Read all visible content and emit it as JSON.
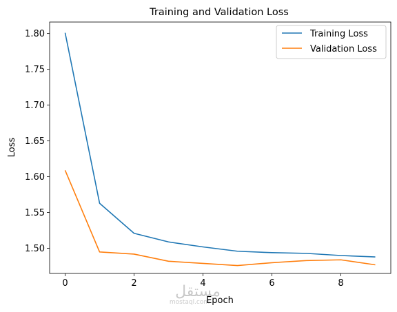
{
  "chart_data": {
    "type": "line",
    "title": "Training and Validation Loss",
    "xlabel": "Epoch",
    "ylabel": "Loss",
    "x": [
      0,
      1,
      2,
      3,
      4,
      5,
      6,
      7,
      8,
      9
    ],
    "xticks": [
      0,
      2,
      4,
      6,
      8
    ],
    "yticks": [
      1.5,
      1.55,
      1.6,
      1.65,
      1.7,
      1.75,
      1.8
    ],
    "xlim": [
      -0.45,
      9.45
    ],
    "ylim": [
      1.465,
      1.816
    ],
    "grid": false,
    "legend_position": "upper right",
    "series": [
      {
        "name": "Training Loss",
        "color": "#1f77b4",
        "values": [
          1.801,
          1.563,
          1.521,
          1.509,
          1.502,
          1.496,
          1.494,
          1.493,
          1.49,
          1.488
        ]
      },
      {
        "name": "Validation Loss",
        "color": "#ff7f0e",
        "values": [
          1.609,
          1.495,
          1.492,
          1.482,
          1.479,
          1.476,
          1.48,
          1.483,
          1.484,
          1.477
        ]
      }
    ]
  },
  "watermark": {
    "text": "مستقل",
    "subtext": "mostaql.com"
  }
}
